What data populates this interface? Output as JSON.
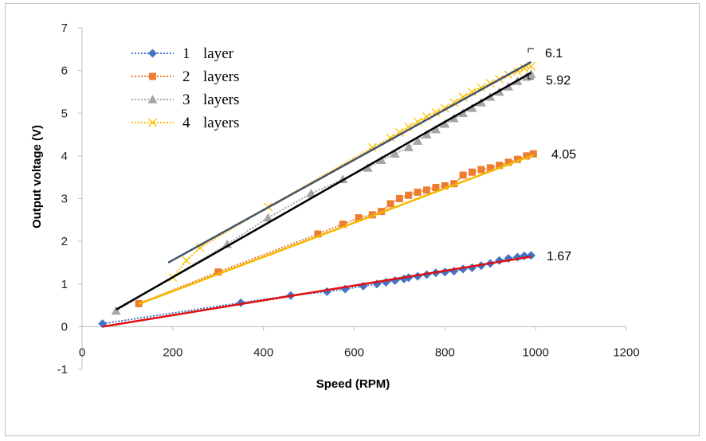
{
  "chart_data": {
    "type": "scatter",
    "xlabel": "Speed (RPM)",
    "ylabel": "Output voltage (V)",
    "xlim": [
      0,
      1200
    ],
    "ylim": [
      -1,
      7
    ],
    "x_ticks": [
      0,
      200,
      400,
      600,
      800,
      1000,
      1200
    ],
    "y_ticks": [
      -1,
      0,
      1,
      2,
      3,
      4,
      5,
      6,
      7
    ],
    "grid": false,
    "legend_position": "top-left",
    "series": [
      {
        "name": "1 layer",
        "marker": "diamond",
        "color": "#4472c4",
        "x": [
          45,
          350,
          460,
          540,
          580,
          620,
          650,
          670,
          690,
          710,
          720,
          740,
          760,
          780,
          800,
          820,
          840,
          860,
          880,
          900,
          920,
          940,
          960,
          975,
          990
        ],
        "y": [
          0.07,
          0.56,
          0.73,
          0.82,
          0.88,
          0.95,
          1.0,
          1.04,
          1.08,
          1.12,
          1.15,
          1.18,
          1.22,
          1.26,
          1.28,
          1.3,
          1.35,
          1.38,
          1.43,
          1.48,
          1.55,
          1.6,
          1.63,
          1.66,
          1.67
        ],
        "trend_color": "#e01010",
        "trend": [
          [
            45,
            0.0
          ],
          [
            990,
            1.64
          ]
        ],
        "end_label": "1.67"
      },
      {
        "name": "2 layers",
        "marker": "square",
        "color": "#ed7d31",
        "x": [
          125,
          300,
          520,
          575,
          610,
          640,
          660,
          680,
          700,
          720,
          740,
          760,
          780,
          800,
          820,
          840,
          860,
          880,
          900,
          920,
          940,
          960,
          980,
          995
        ],
        "y": [
          0.54,
          1.28,
          2.17,
          2.4,
          2.55,
          2.62,
          2.7,
          2.88,
          3.0,
          3.08,
          3.15,
          3.2,
          3.26,
          3.3,
          3.35,
          3.55,
          3.62,
          3.68,
          3.72,
          3.78,
          3.85,
          3.92,
          4.0,
          4.05
        ],
        "trend_color": "#f5b800",
        "trend": [
          [
            125,
            0.53
          ],
          [
            995,
            4.02
          ]
        ],
        "end_label": "4.05"
      },
      {
        "name": "3 layers",
        "marker": "triangle",
        "color": "#a5a5a5",
        "x": [
          75,
          320,
          410,
          505,
          575,
          630,
          660,
          690,
          720,
          740,
          760,
          780,
          800,
          820,
          840,
          860,
          880,
          900,
          920,
          940,
          960,
          980,
          990
        ],
        "y": [
          0.37,
          1.93,
          2.55,
          3.12,
          3.45,
          3.72,
          3.9,
          4.05,
          4.2,
          4.35,
          4.5,
          4.62,
          4.75,
          4.88,
          5.0,
          5.12,
          5.25,
          5.38,
          5.5,
          5.62,
          5.75,
          5.85,
          5.92
        ],
        "trend_color": "#000000",
        "trend": [
          [
            75,
            0.4
          ],
          [
            990,
            5.95
          ]
        ],
        "end_label": "5.92"
      },
      {
        "name": "4 layers",
        "marker": "x",
        "color": "#ffc000",
        "x": [
          200,
          230,
          260,
          410,
          640,
          680,
          700,
          720,
          740,
          760,
          780,
          800,
          820,
          840,
          860,
          880,
          900,
          920,
          940,
          960,
          975,
          990
        ],
        "y": [
          1.15,
          1.55,
          1.85,
          2.8,
          4.2,
          4.42,
          4.55,
          4.68,
          4.8,
          4.92,
          5.02,
          5.12,
          5.25,
          5.38,
          5.5,
          5.6,
          5.7,
          5.8,
          5.9,
          5.98,
          6.05,
          6.1
        ],
        "trend_color": "#44546a",
        "trend": [
          [
            190,
            1.5
          ],
          [
            990,
            6.2
          ]
        ],
        "end_label": "6.1"
      }
    ]
  }
}
